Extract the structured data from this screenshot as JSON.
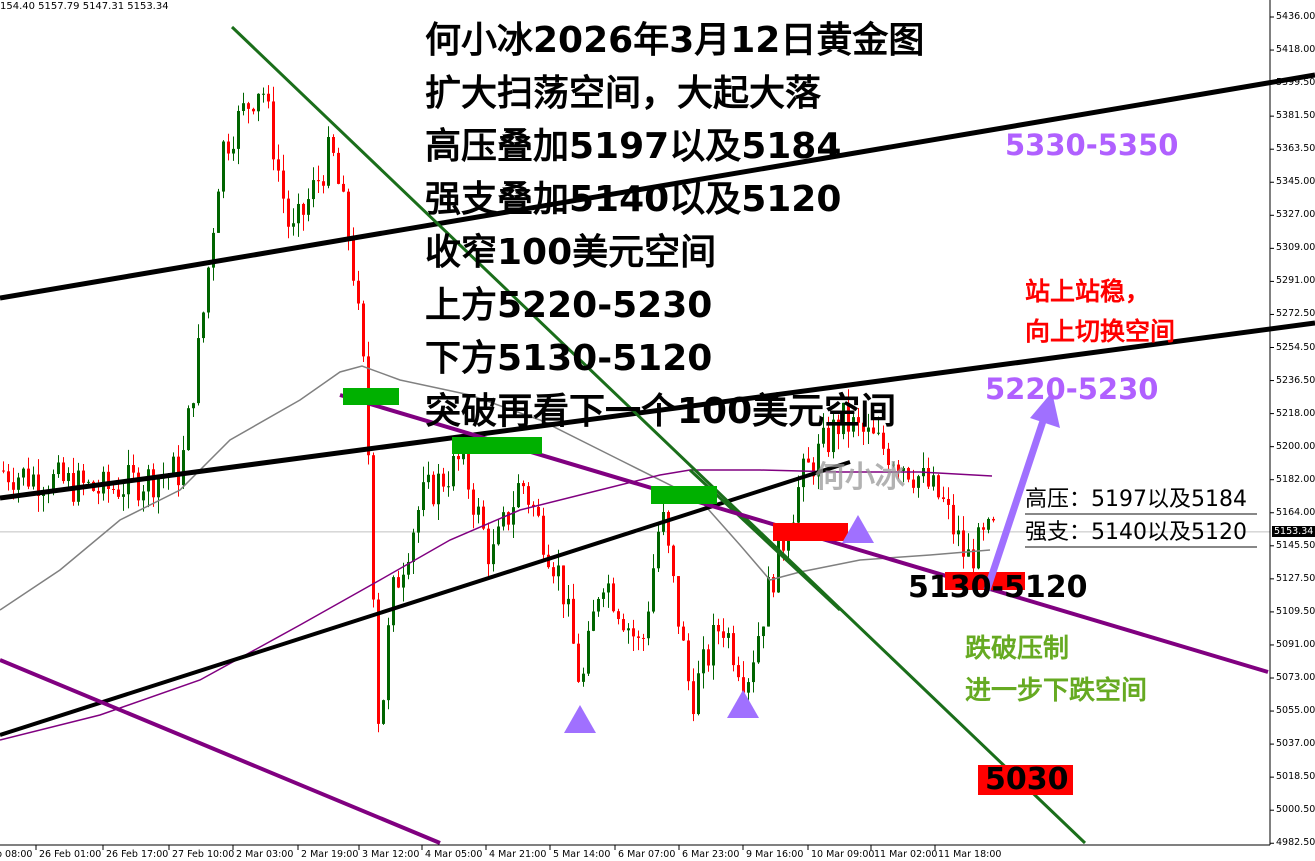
{
  "ohlc_header": "154.40 5157.79 5147.31 5153.34",
  "colors": {
    "bull": "#006400",
    "bear": "#ff0000",
    "trend_black": "#000000",
    "trend_green": "#1a6e1a",
    "trend_purple": "#800080",
    "ma_gray": "#808080",
    "accent_purple": "#a070ff"
  },
  "chart_data": {
    "type": "candlestick",
    "symbol_hint": "gold",
    "ylim": [
      4982.5,
      5440
    ],
    "current_price": "5153.34",
    "y_ticks": [
      "5436.00",
      "5418.00",
      "5399.50",
      "5381.50",
      "5363.50",
      "5345.00",
      "5327.00",
      "5309.00",
      "5291.00",
      "5272.50",
      "5254.50",
      "5236.50",
      "5218.00",
      "5200.00",
      "5182.00",
      "5164.00",
      "5145.50",
      "5127.50",
      "5109.50",
      "5091.00",
      "5073.00",
      "5055.00",
      "5037.00",
      "5018.50",
      "5000.50",
      "4982.50"
    ],
    "x_ticks": [
      "b 08:00",
      "26 Feb 01:00",
      "26 Feb 17:00",
      "27 Feb 10:00",
      "2 Mar 03:00",
      "2 Mar 19:00",
      "3 Mar 12:00",
      "4 Mar 05:00",
      "4 Mar 21:00",
      "5 Mar 14:00",
      "6 Mar 07:00",
      "6 Mar 23:00",
      "9 Mar 16:00",
      "10 Mar 09:00",
      "11 Mar 02:00",
      "11 Mar 18:00"
    ],
    "approx_price_path": [
      5187,
      5176,
      5187,
      5264,
      5363,
      5401,
      5314,
      5363,
      5308,
      5226,
      5039,
      5116,
      5171,
      5193,
      5138,
      5182,
      5127,
      5066,
      5132,
      5088,
      5165,
      5061,
      5105,
      5072,
      5127,
      5182,
      5215,
      5204,
      5193,
      5171,
      5138,
      5153
    ]
  },
  "annotations": {
    "main_lines": [
      "何小冰2026年3月12日黄金图",
      "扩大扫荡空间，大起大落",
      "高压叠加5197以及5184",
      "强支叠加5140以及5120",
      "收窄100美元空间",
      "上方5220-5230",
      "下方5130-5120",
      "突破再看下一个100美元空间"
    ],
    "target_upper": "5330-5350",
    "target_mid": "5220-5230",
    "red_note": [
      "站上站稳，",
      "向上切换空间"
    ],
    "resistance": "高压：5197以及5184",
    "support": "强支：5140以及5120",
    "low_zone": "5130-5120",
    "green_note": [
      "跌破压制",
      "进一步下跌空间"
    ],
    "target_low": "5030",
    "watermark": "何小冰"
  }
}
